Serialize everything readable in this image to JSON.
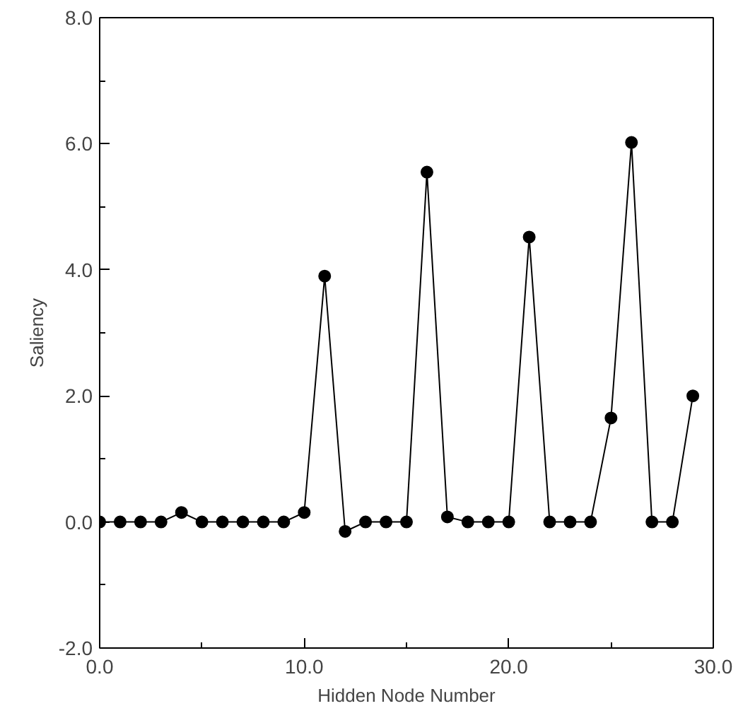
{
  "chart_data": {
    "type": "line",
    "xlabel": "Hidden Node Number",
    "ylabel": "Saliency",
    "x": [
      0,
      1,
      2,
      3,
      4,
      5,
      6,
      7,
      8,
      9,
      10,
      11,
      12,
      13,
      14,
      15,
      16,
      17,
      18,
      19,
      20,
      21,
      22,
      23,
      24,
      25,
      26,
      27,
      28,
      29
    ],
    "series": [
      {
        "color": "#000000",
        "values": [
          0,
          0,
          0,
          0,
          0.15,
          0,
          0,
          0,
          0,
          0,
          0.15,
          3.9,
          -0.15,
          0,
          0,
          0,
          5.55,
          0.08,
          0,
          0,
          0,
          4.52,
          0,
          0,
          0,
          1.65,
          6.02,
          0,
          0,
          2.0
        ]
      }
    ],
    "xlim": [
      0,
      30
    ],
    "ylim": [
      -2,
      8
    ],
    "xticks": [
      {
        "value": 0,
        "label": "0.0"
      },
      {
        "value": 10,
        "label": "10.0"
      },
      {
        "value": 20,
        "label": "20.0"
      },
      {
        "value": 30,
        "label": "30.0"
      }
    ],
    "yticks": [
      {
        "value": -2,
        "label": "-2.0"
      },
      {
        "value": 0,
        "label": "0.0"
      },
      {
        "value": 2,
        "label": "2.0"
      },
      {
        "value": 4,
        "label": "4.0"
      },
      {
        "value": 6,
        "label": "6.0"
      },
      {
        "value": 8,
        "label": "8.0"
      }
    ],
    "marker": "circle",
    "line_style": "solid"
  }
}
